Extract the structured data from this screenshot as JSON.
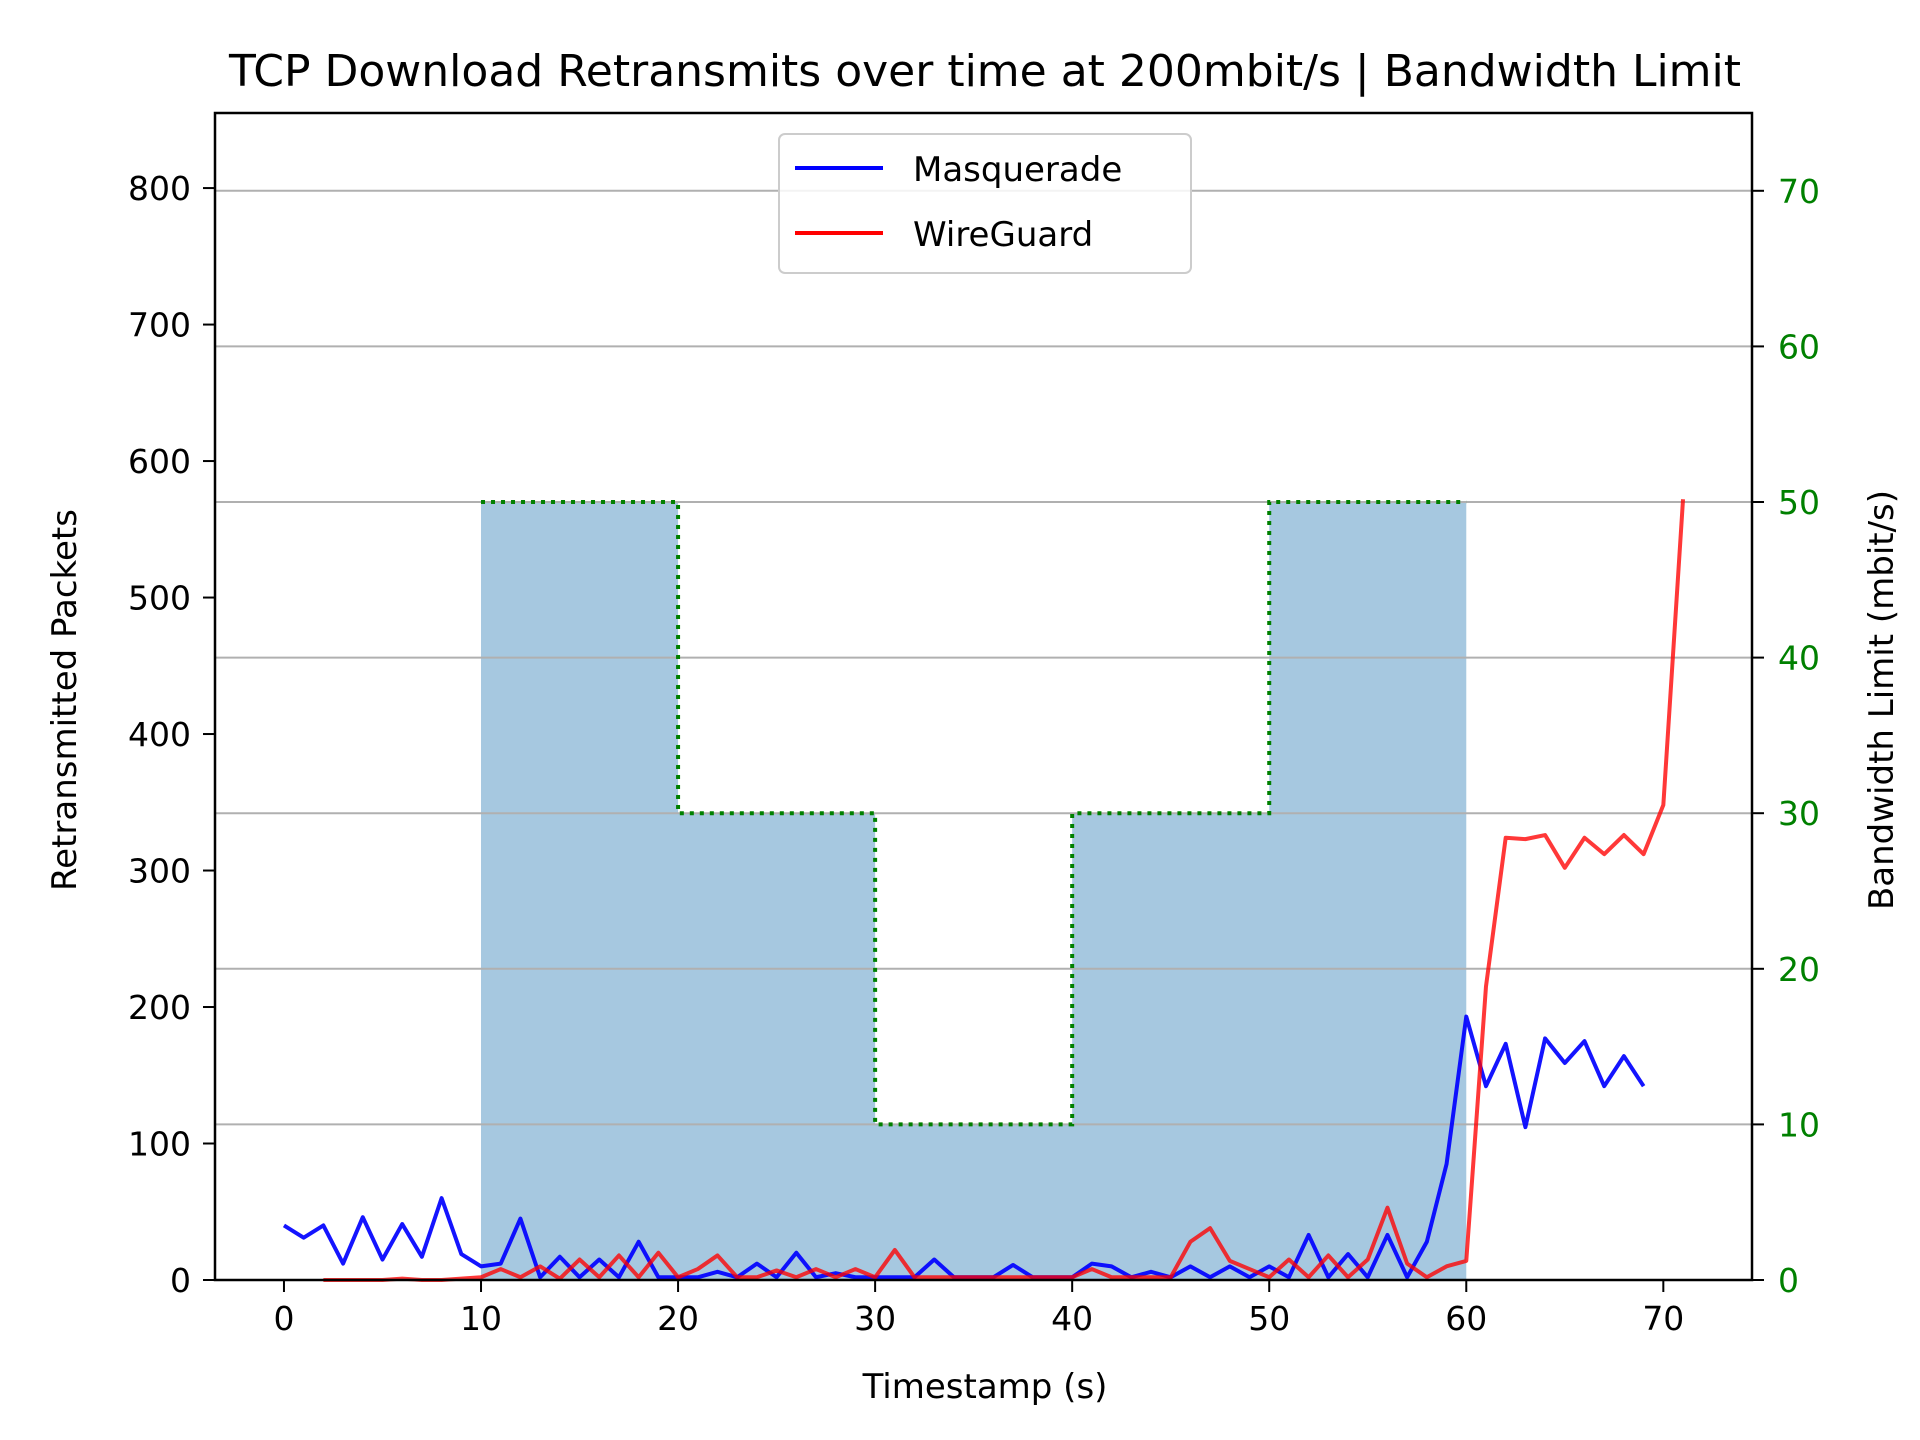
{
  "chart_data": {
    "type": "line",
    "title": "TCP Download Retransmits over time at 200mbit/s | Bandwidth Limit",
    "xlabel": "Timestamp (s)",
    "ylabel": "Retransmitted Packets",
    "y2label": "Bandwidth Limit (mbit/s)",
    "xlim": [
      -3.5,
      74.5
    ],
    "ylim": [
      0,
      855
    ],
    "y2lim": [
      0,
      75
    ],
    "xticks": [
      0,
      10,
      20,
      30,
      40,
      50,
      60,
      70
    ],
    "yticks": [
      0,
      100,
      200,
      300,
      400,
      500,
      600,
      700,
      800
    ],
    "y2ticks": [
      0,
      10,
      20,
      30,
      40,
      50,
      60,
      70
    ],
    "grid": true,
    "legend_position": "upper center",
    "colors": {
      "masquerade": "#0000ff",
      "wireguard": "#ff0000",
      "bandwidth_fill": "#a6c8e0",
      "bandwidth_line": "#008000",
      "right_axis": "#008000",
      "grid": "#b0b0b0"
    },
    "series": [
      {
        "name": "Masquerade",
        "x": [
          0,
          1,
          2,
          3,
          4,
          5,
          6,
          7,
          8,
          9,
          10,
          11,
          12,
          13,
          14,
          15,
          16,
          17,
          18,
          19,
          20,
          21,
          22,
          23,
          24,
          25,
          26,
          27,
          28,
          29,
          30,
          31,
          32,
          33,
          34,
          35,
          36,
          37,
          38,
          39,
          40,
          41,
          42,
          43,
          44,
          45,
          46,
          47,
          48,
          49,
          50,
          51,
          52,
          53,
          54,
          55,
          56,
          57,
          58,
          59,
          60,
          61,
          62,
          63,
          64,
          65,
          66,
          67,
          68,
          69
        ],
        "y": [
          40,
          31,
          40,
          12,
          46,
          15,
          41,
          17,
          60,
          19,
          10,
          12,
          45,
          2,
          17,
          2,
          15,
          2,
          28,
          2,
          2,
          2,
          6,
          2,
          12,
          2,
          20,
          2,
          5,
          2,
          2,
          2,
          2,
          15,
          2,
          2,
          2,
          11,
          2,
          2,
          2,
          12,
          10,
          2,
          6,
          2,
          10,
          2,
          10,
          2,
          10,
          2,
          33,
          2,
          19,
          2,
          33,
          2,
          28,
          85,
          193,
          142,
          173,
          112,
          177,
          159,
          175,
          142,
          164,
          142
        ]
      },
      {
        "name": "WireGuard",
        "x": [
          2,
          3,
          4,
          5,
          6,
          7,
          8,
          9,
          10,
          11,
          12,
          13,
          14,
          15,
          16,
          17,
          18,
          19,
          20,
          21,
          22,
          23,
          24,
          25,
          26,
          27,
          28,
          29,
          30,
          31,
          32,
          33,
          34,
          35,
          36,
          37,
          38,
          39,
          40,
          41,
          42,
          43,
          44,
          45,
          46,
          47,
          48,
          49,
          50,
          51,
          52,
          53,
          54,
          55,
          56,
          57,
          58,
          59,
          60,
          61,
          62,
          63,
          64,
          65,
          66,
          67,
          68,
          69,
          70,
          71
        ],
        "y": [
          0,
          0,
          0,
          0,
          1,
          0,
          0,
          1,
          2,
          8,
          2,
          10,
          1,
          15,
          2,
          18,
          2,
          20,
          2,
          8,
          18,
          2,
          2,
          7,
          2,
          8,
          2,
          8,
          2,
          22,
          2,
          2,
          2,
          2,
          2,
          2,
          2,
          2,
          2,
          8,
          2,
          2,
          2,
          2,
          28,
          38,
          14,
          8,
          2,
          15,
          2,
          18,
          2,
          15,
          53,
          12,
          2,
          10,
          14,
          215,
          324,
          323,
          326,
          302,
          324,
          312,
          326,
          312,
          348,
          572
        ]
      },
      {
        "name": "Bandwidth Limit",
        "axis": "right",
        "step_edges": [
          10,
          20,
          30,
          40,
          50,
          60
        ],
        "values": [
          50,
          30,
          10,
          30,
          50
        ]
      }
    ]
  }
}
